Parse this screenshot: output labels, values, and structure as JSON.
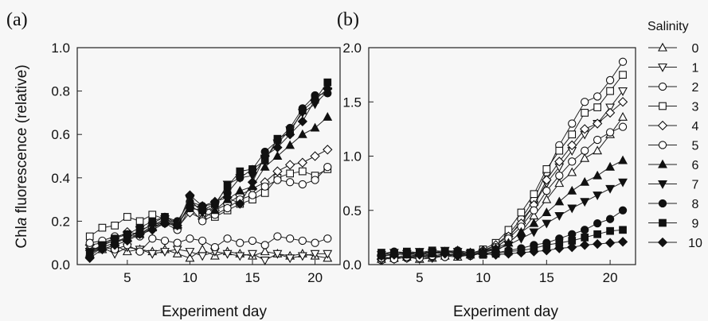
{
  "figure": {
    "panel_labels": [
      "(a)",
      "(b)"
    ],
    "ylabel_parts": [
      "Chl",
      "a",
      " fluorescence (relative)"
    ],
    "xlabel": "Experiment day",
    "legend_title": "Salinity"
  },
  "chart_data": [
    {
      "type": "line",
      "panel": "(a)",
      "title": "",
      "xlabel": "Experiment day",
      "ylabel": "Chla fluorescence (relative)",
      "xlim": [
        1,
        22
      ],
      "ylim": [
        0,
        1.0
      ],
      "xticks": [
        5,
        10,
        15,
        20
      ],
      "yticks": [
        0.0,
        0.2,
        0.4,
        0.6,
        0.8,
        1.0
      ],
      "ytick_labels": [
        "0.0",
        "0.2",
        "0.4",
        "0.6",
        "0.8",
        "1.0"
      ],
      "grid": false,
      "x": [
        2,
        3,
        4,
        5,
        6,
        7,
        8,
        9,
        10,
        11,
        12,
        13,
        14,
        15,
        16,
        17,
        18,
        19,
        20,
        21
      ],
      "series": [
        {
          "name": "0",
          "marker": "triangle-up",
          "filled": false,
          "values": [
            0.08,
            0.07,
            0.09,
            0.06,
            0.07,
            0.06,
            0.07,
            0.05,
            0.03,
            0.07,
            0.04,
            0.06,
            0.05,
            0.04,
            0.06,
            0.05,
            0.04,
            0.05,
            0.04,
            0.03
          ]
        },
        {
          "name": "1",
          "marker": "triangle-down",
          "filled": false,
          "values": [
            0.06,
            0.08,
            0.05,
            0.08,
            0.07,
            0.05,
            0.06,
            0.07,
            0.06,
            0.04,
            0.06,
            0.05,
            0.04,
            0.05,
            0.02,
            0.05,
            0.03,
            0.04,
            0.05,
            0.05
          ]
        },
        {
          "name": "2",
          "marker": "circle",
          "filled": false,
          "values": [
            0.07,
            0.08,
            0.07,
            0.09,
            0.06,
            0.12,
            0.11,
            0.1,
            0.12,
            0.11,
            0.08,
            0.12,
            0.1,
            0.11,
            0.09,
            0.13,
            0.12,
            0.11,
            0.1,
            0.12
          ]
        },
        {
          "name": "3",
          "marker": "square",
          "filled": false,
          "values": [
            0.13,
            0.17,
            0.18,
            0.22,
            0.2,
            0.23,
            0.21,
            0.18,
            0.27,
            0.24,
            0.22,
            0.25,
            0.28,
            0.3,
            0.33,
            0.4,
            0.42,
            0.43,
            0.41,
            0.44
          ]
        },
        {
          "name": "4",
          "marker": "diamond",
          "filled": false,
          "values": [
            0.09,
            0.1,
            0.12,
            0.15,
            0.14,
            0.18,
            0.2,
            0.17,
            0.24,
            0.21,
            0.25,
            0.28,
            0.32,
            0.35,
            0.38,
            0.43,
            0.46,
            0.47,
            0.5,
            0.53
          ]
        },
        {
          "name": "5",
          "marker": "circle",
          "filled": false,
          "values": [
            0.1,
            0.11,
            0.13,
            0.14,
            0.13,
            0.17,
            0.19,
            0.16,
            0.26,
            0.2,
            0.23,
            0.26,
            0.3,
            0.32,
            0.36,
            0.39,
            0.38,
            0.37,
            0.39,
            0.45
          ]
        },
        {
          "name": "6",
          "marker": "triangle-up",
          "filled": true,
          "values": [
            0.05,
            0.08,
            0.1,
            0.12,
            0.14,
            0.17,
            0.2,
            0.18,
            0.28,
            0.26,
            0.25,
            0.3,
            0.34,
            0.36,
            0.45,
            0.5,
            0.55,
            0.6,
            0.63,
            0.68
          ]
        },
        {
          "name": "7",
          "marker": "triangle-down",
          "filled": true,
          "values": [
            0.06,
            0.09,
            0.11,
            0.12,
            0.16,
            0.18,
            0.21,
            0.19,
            0.3,
            0.24,
            0.27,
            0.37,
            0.4,
            0.41,
            0.49,
            0.56,
            0.62,
            0.7,
            0.74,
            0.8
          ]
        },
        {
          "name": "8",
          "marker": "circle",
          "filled": true,
          "values": [
            0.04,
            0.08,
            0.1,
            0.13,
            0.15,
            0.19,
            0.22,
            0.2,
            0.29,
            0.27,
            0.28,
            0.33,
            0.4,
            0.44,
            0.52,
            0.57,
            0.63,
            0.72,
            0.78,
            0.79
          ]
        },
        {
          "name": "9",
          "marker": "square",
          "filled": true,
          "values": [
            0.05,
            0.09,
            0.12,
            0.14,
            0.17,
            0.2,
            0.22,
            0.19,
            0.26,
            0.25,
            0.28,
            0.36,
            0.43,
            0.44,
            0.48,
            0.58,
            0.61,
            0.71,
            0.76,
            0.84
          ]
        },
        {
          "name": "10",
          "marker": "diamond",
          "filled": true,
          "values": [
            0.03,
            0.07,
            0.09,
            0.11,
            0.14,
            0.16,
            0.19,
            0.18,
            0.32,
            0.27,
            0.29,
            0.31,
            0.28,
            0.38,
            0.5,
            0.54,
            0.6,
            0.66,
            0.76,
            0.81
          ]
        }
      ]
    },
    {
      "type": "line",
      "panel": "(b)",
      "title": "",
      "xlabel": "Experiment day",
      "ylabel": "",
      "xlim": [
        1,
        22
      ],
      "ylim": [
        0,
        2.0
      ],
      "xticks": [
        5,
        10,
        15,
        20
      ],
      "yticks": [
        0.0,
        0.5,
        1.0,
        1.5,
        2.0
      ],
      "ytick_labels": [
        "0.0",
        "0.5",
        "1.0",
        "1.5",
        "2.0"
      ],
      "grid": false,
      "legend_title": "Salinity",
      "legend_position": "right",
      "x": [
        2,
        3,
        4,
        5,
        6,
        7,
        8,
        9,
        10,
        11,
        12,
        13,
        14,
        15,
        16,
        17,
        18,
        19,
        20,
        21
      ],
      "series": [
        {
          "name": "0",
          "marker": "triangle-up",
          "filled": false,
          "values": [
            0.05,
            0.06,
            0.07,
            0.05,
            0.06,
            0.08,
            0.07,
            0.09,
            0.1,
            0.12,
            0.2,
            0.3,
            0.45,
            0.6,
            0.75,
            0.85,
            0.98,
            1.05,
            1.2,
            1.36
          ]
        },
        {
          "name": "1",
          "marker": "triangle-down",
          "filled": false,
          "values": [
            0.06,
            0.05,
            0.08,
            0.07,
            0.06,
            0.08,
            0.09,
            0.08,
            0.11,
            0.15,
            0.25,
            0.4,
            0.55,
            0.75,
            0.9,
            1.05,
            1.2,
            1.3,
            1.45,
            1.6
          ]
        },
        {
          "name": "2",
          "marker": "circle",
          "filled": false,
          "values": [
            0.04,
            0.07,
            0.06,
            0.08,
            0.07,
            0.09,
            0.1,
            0.09,
            0.12,
            0.18,
            0.28,
            0.42,
            0.6,
            0.85,
            1.1,
            1.3,
            1.5,
            1.55,
            1.7,
            1.87
          ]
        },
        {
          "name": "3",
          "marker": "square",
          "filled": false,
          "values": [
            0.07,
            0.06,
            0.09,
            0.08,
            0.1,
            0.12,
            0.11,
            0.1,
            0.14,
            0.2,
            0.32,
            0.48,
            0.65,
            0.88,
            1.05,
            1.2,
            1.4,
            1.45,
            1.6,
            1.75
          ]
        },
        {
          "name": "4",
          "marker": "diamond",
          "filled": false,
          "values": [
            0.05,
            0.07,
            0.06,
            0.09,
            0.08,
            0.1,
            0.09,
            0.11,
            0.13,
            0.18,
            0.26,
            0.38,
            0.55,
            0.78,
            0.95,
            1.1,
            1.25,
            1.3,
            1.4,
            1.5
          ]
        },
        {
          "name": "5",
          "marker": "circle",
          "filled": false,
          "values": [
            0.06,
            0.05,
            0.07,
            0.06,
            0.08,
            0.07,
            0.1,
            0.08,
            0.12,
            0.16,
            0.24,
            0.35,
            0.5,
            0.68,
            0.82,
            0.95,
            1.05,
            1.15,
            1.22,
            1.27
          ]
        },
        {
          "name": "6",
          "marker": "triangle-up",
          "filled": true,
          "values": [
            0.08,
            0.1,
            0.09,
            0.11,
            0.1,
            0.12,
            0.13,
            0.11,
            0.12,
            0.15,
            0.2,
            0.3,
            0.38,
            0.48,
            0.58,
            0.68,
            0.76,
            0.82,
            0.9,
            0.96
          ]
        },
        {
          "name": "7",
          "marker": "triangle-down",
          "filled": true,
          "values": [
            0.09,
            0.11,
            0.1,
            0.12,
            0.11,
            0.13,
            0.12,
            0.1,
            0.11,
            0.14,
            0.18,
            0.24,
            0.3,
            0.38,
            0.45,
            0.52,
            0.58,
            0.64,
            0.7,
            0.76
          ]
        },
        {
          "name": "8",
          "marker": "circle",
          "filled": true,
          "values": [
            0.1,
            0.12,
            0.11,
            0.1,
            0.12,
            0.11,
            0.13,
            0.09,
            0.1,
            0.11,
            0.13,
            0.15,
            0.18,
            0.2,
            0.24,
            0.28,
            0.32,
            0.38,
            0.42,
            0.5
          ]
        },
        {
          "name": "9",
          "marker": "square",
          "filled": true,
          "values": [
            0.11,
            0.1,
            0.12,
            0.11,
            0.13,
            0.12,
            0.1,
            0.11,
            0.09,
            0.1,
            0.12,
            0.13,
            0.15,
            0.18,
            0.2,
            0.22,
            0.25,
            0.28,
            0.31,
            0.32
          ]
        },
        {
          "name": "10",
          "marker": "diamond",
          "filled": true,
          "values": [
            0.08,
            0.09,
            0.1,
            0.09,
            0.11,
            0.1,
            0.08,
            0.09,
            0.1,
            0.09,
            0.1,
            0.11,
            0.12,
            0.13,
            0.15,
            0.16,
            0.18,
            0.19,
            0.2,
            0.21
          ]
        }
      ]
    }
  ]
}
